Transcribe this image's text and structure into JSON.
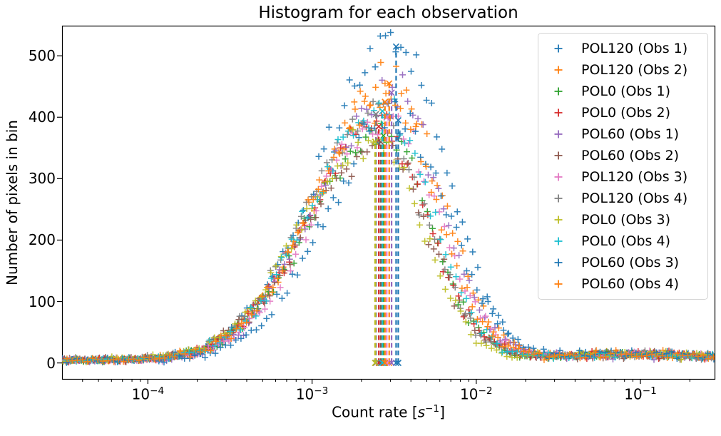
{
  "chart_data": {
    "type": "scatter",
    "title": "Histogram for each observation",
    "xlabel": "Count rate [s⁻¹]",
    "xlabel_parts": {
      "prefix": "Count rate [",
      "variable": "s",
      "exponent": "−1",
      "suffix": "]"
    },
    "ylabel": "Number of pixels in bin",
    "x_scale": "log",
    "y_scale": "linear",
    "xlim": [
      3e-05,
      0.283
    ],
    "ylim": [
      -26,
      549
    ],
    "x_ticks": {
      "values": [
        0.0001,
        0.001,
        0.01,
        0.1
      ],
      "labels": [
        {
          "base": "10",
          "exp": "−4"
        },
        {
          "base": "10",
          "exp": "−3"
        },
        {
          "base": "10",
          "exp": "−2"
        },
        {
          "base": "10",
          "exp": "−1"
        }
      ]
    },
    "y_ticks": {
      "values": [
        0,
        100,
        200,
        300,
        400,
        500
      ],
      "labels": [
        "0",
        "100",
        "200",
        "300",
        "400",
        "500"
      ]
    },
    "grid": false,
    "marker": "+",
    "legend": {
      "location": "upper right",
      "border_color": "#d4d4d4",
      "background": "#ffffff"
    },
    "bins_per_decade": 32,
    "tail": {
      "bump_center": 0.09,
      "bump_width_dex": 0.45
    },
    "mean_vline": {
      "linestyle": "dashed",
      "endpoint_marker": "x",
      "from_count": 0
    },
    "series": [
      {
        "name": "POL120 (Obs 1)",
        "color": "#1f77b4",
        "mean_count_rate": 0.00325,
        "peak_count": 515,
        "sigma_left_dex": 0.46,
        "sigma_right_dex": 0.3,
        "baseline_count": 5,
        "tail_bump_count": 10,
        "seed": 1
      },
      {
        "name": "POL120 (Obs 2)",
        "color": "#ff7f0e",
        "mean_count_rate": 0.00295,
        "peak_count": 455,
        "sigma_left_dex": 0.44,
        "sigma_right_dex": 0.31,
        "baseline_count": 5,
        "tail_bump_count": 11,
        "seed": 2
      },
      {
        "name": "POL0 (Obs 1)",
        "color": "#2ca02c",
        "mean_count_rate": 0.00272,
        "peak_count": 370,
        "sigma_left_dex": 0.45,
        "sigma_right_dex": 0.29,
        "baseline_count": 4,
        "tail_bump_count": 9,
        "seed": 3
      },
      {
        "name": "POL0 (Obs 2)",
        "color": "#d62728",
        "mean_count_rate": 0.00255,
        "peak_count": 385,
        "sigma_left_dex": 0.43,
        "sigma_right_dex": 0.3,
        "baseline_count": 5,
        "tail_bump_count": 10,
        "seed": 4
      },
      {
        "name": "POL60 (Obs 1)",
        "color": "#9467bd",
        "mean_count_rate": 0.00305,
        "peak_count": 440,
        "sigma_left_dex": 0.44,
        "sigma_right_dex": 0.3,
        "baseline_count": 4,
        "tail_bump_count": 9,
        "seed": 5
      },
      {
        "name": "POL60 (Obs 2)",
        "color": "#8c564b",
        "mean_count_rate": 0.00262,
        "peak_count": 360,
        "sigma_left_dex": 0.45,
        "sigma_right_dex": 0.29,
        "baseline_count": 5,
        "tail_bump_count": 8,
        "seed": 6
      },
      {
        "name": "POL120 (Obs 3)",
        "color": "#e377c2",
        "mean_count_rate": 0.00285,
        "peak_count": 400,
        "sigma_left_dex": 0.44,
        "sigma_right_dex": 0.31,
        "baseline_count": 4,
        "tail_bump_count": 10,
        "seed": 7
      },
      {
        "name": "POL120 (Obs 4)",
        "color": "#7f7f7f",
        "mean_count_rate": 0.00245,
        "peak_count": 405,
        "sigma_left_dex": 0.43,
        "sigma_right_dex": 0.3,
        "baseline_count": 5,
        "tail_bump_count": 9,
        "seed": 8
      },
      {
        "name": "POL0 (Obs 3)",
        "color": "#bcbd22",
        "mean_count_rate": 0.00242,
        "peak_count": 360,
        "sigma_left_dex": 0.45,
        "sigma_right_dex": 0.29,
        "baseline_count": 5,
        "tail_bump_count": 10,
        "seed": 9
      },
      {
        "name": "POL0 (Obs 4)",
        "color": "#17becf",
        "mean_count_rate": 0.00268,
        "peak_count": 410,
        "sigma_left_dex": 0.44,
        "sigma_right_dex": 0.3,
        "baseline_count": 4,
        "tail_bump_count": 9,
        "seed": 10
      },
      {
        "name": "POL60 (Obs 3)",
        "color": "#1f77b4",
        "mean_count_rate": 0.00335,
        "peak_count": 395,
        "sigma_left_dex": 0.43,
        "sigma_right_dex": 0.31,
        "baseline_count": 5,
        "tail_bump_count": 11,
        "seed": 11
      },
      {
        "name": "POL60 (Obs 4)",
        "color": "#ff7f0e",
        "mean_count_rate": 0.00278,
        "peak_count": 425,
        "sigma_left_dex": 0.44,
        "sigma_right_dex": 0.3,
        "baseline_count": 5,
        "tail_bump_count": 10,
        "seed": 12
      }
    ]
  }
}
